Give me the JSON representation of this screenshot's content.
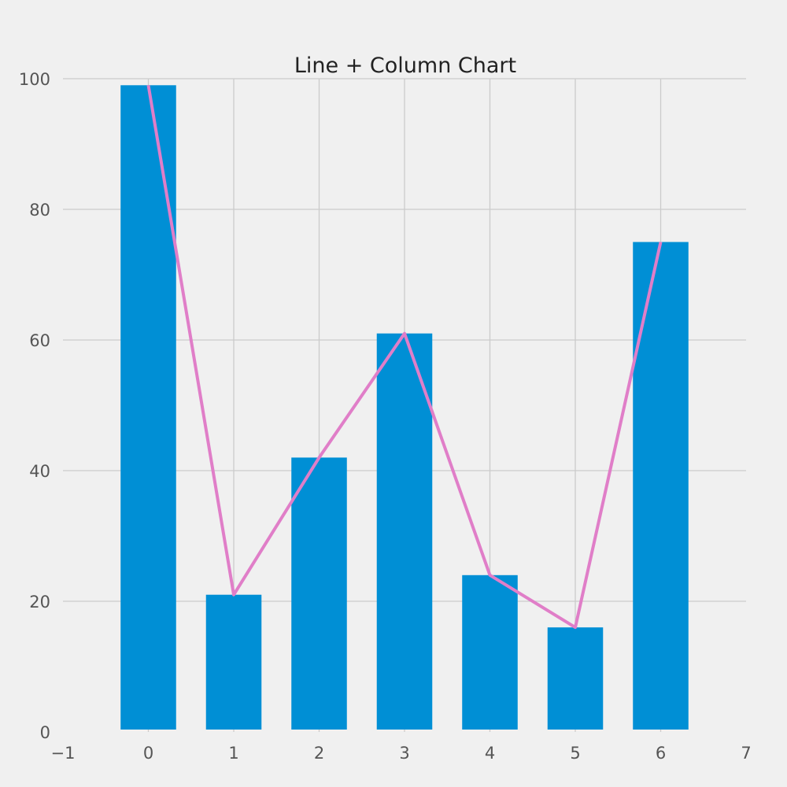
{
  "chart_data": {
    "type": "bar",
    "title": "Line + Column Chart",
    "xlabel": "",
    "ylabel": "",
    "x": [
      0,
      1,
      2,
      3,
      4,
      5,
      6
    ],
    "series": [
      {
        "kind": "bar",
        "values": [
          99,
          21,
          42,
          61,
          24,
          16,
          75
        ],
        "color": "#008fd5"
      },
      {
        "kind": "line",
        "values": [
          99,
          21,
          42,
          61,
          24,
          16,
          75
        ],
        "color": "#e07ec8"
      }
    ],
    "xlim": [
      -1,
      7
    ],
    "ylim": [
      0,
      100
    ],
    "xticks": [
      -1,
      0,
      1,
      2,
      3,
      4,
      5,
      6,
      7
    ],
    "xtick_labels": [
      "−1",
      "0",
      "1",
      "2",
      "3",
      "4",
      "5",
      "6",
      "7"
    ],
    "yticks": [
      0,
      20,
      40,
      60,
      80,
      100
    ],
    "ytick_labels": [
      "0",
      "20",
      "40",
      "60",
      "80",
      "100"
    ],
    "grid": true,
    "background": "#f0f0f0"
  }
}
